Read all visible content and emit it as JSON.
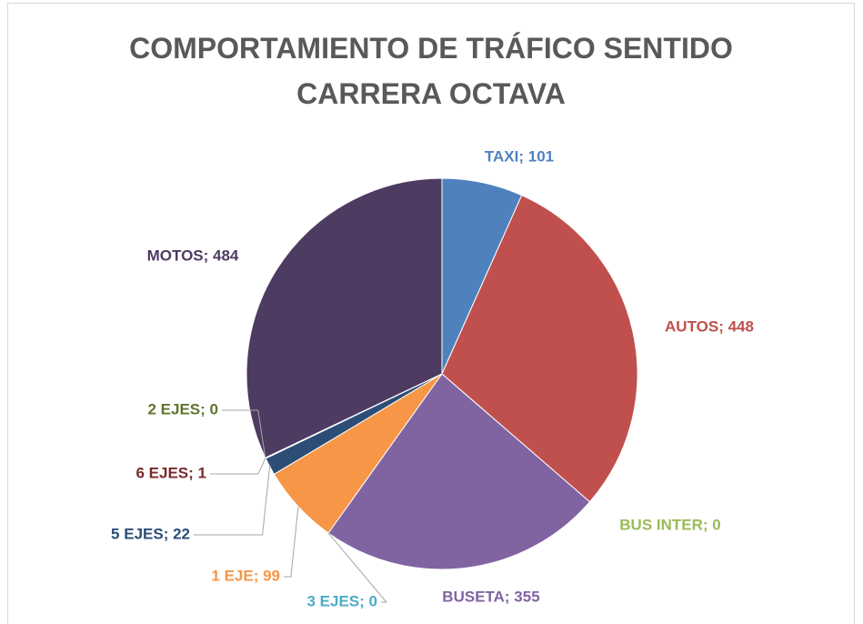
{
  "chart_data": {
    "type": "pie",
    "title": "COMPORTAMIENTO DE TRÁFICO SENTIDO CARRERA OCTAVA",
    "values": [
      101,
      448,
      0,
      355,
      0,
      99,
      22,
      1,
      0,
      484
    ],
    "value_labels": [
      "TAXI; 101",
      "AUTOS; 448",
      "BUS INTER; 0",
      "BUSETA; 355",
      "3 EJES; 0",
      "1 EJE; 99",
      "5 EJES; 22",
      "6 EJES; 1",
      "2 EJES; 0",
      "MOTOS; 484"
    ],
    "colors": [
      "#4f81bd",
      "#c0504d",
      "#9bbb59",
      "#8064a2",
      "#4bacc6",
      "#f79646",
      "#2c4d75",
      "#772c2a",
      "#5f7530",
      "#4d3b62"
    ]
  }
}
